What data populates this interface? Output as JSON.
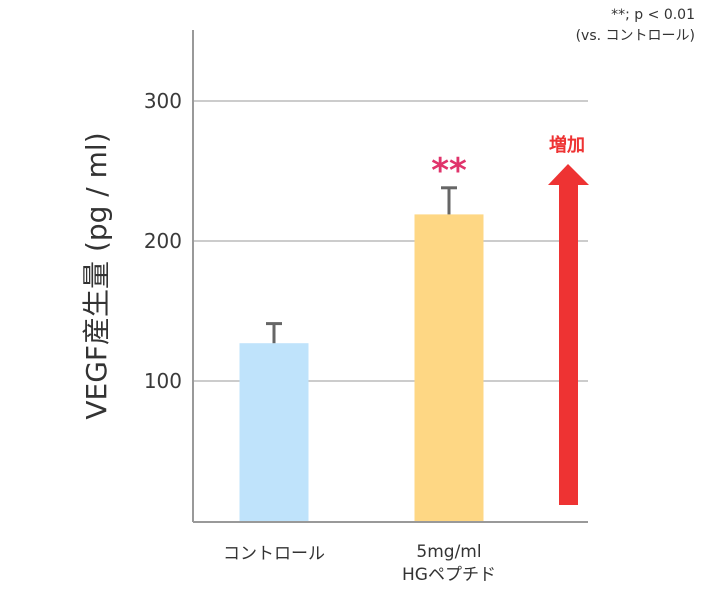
{
  "chart_data": {
    "type": "bar",
    "ylabel": "VEGF産生量 (pg / ml)",
    "yticks": [
      100,
      200,
      300
    ],
    "ylim": [
      0,
      350
    ],
    "grid": true,
    "categories": [
      "コントロール",
      "5mg/ml\nHGペプチド"
    ],
    "values": [
      127,
      219
    ],
    "errors": [
      14,
      19
    ],
    "colors": [
      "#bfe3fb",
      "#fed784"
    ],
    "significance": [
      "",
      "**"
    ],
    "note_line1": "**; p < 0.01",
    "note_line2": "(vs. コントロール)",
    "arrow_label": "増加",
    "arrow_color": "#ee3333"
  }
}
